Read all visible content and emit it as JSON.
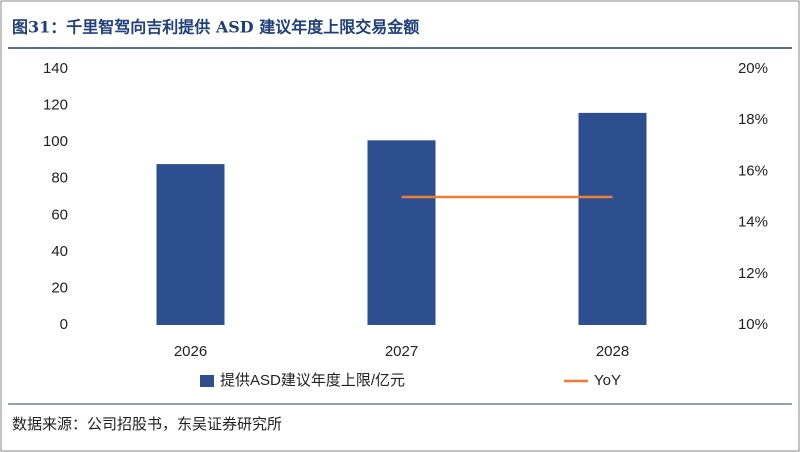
{
  "chart_data": {
    "type": "bar",
    "title": "图31：千里智驾向吉利提供 ASD 建议年度上限交易金额",
    "source": "数据来源：公司招股书，东吴证券研究所",
    "categories": [
      "2026",
      "2027",
      "2028"
    ],
    "series": [
      {
        "name": "提供ASD建议年度上限/亿元",
        "color": "#2e4f8f",
        "values": [
          88,
          101,
          116
        ]
      },
      {
        "name": "YoY",
        "color": "#ed7d31",
        "values": [
          null,
          15,
          15
        ],
        "axis": "y2",
        "type": "line"
      }
    ],
    "ylim": [
      0,
      140
    ],
    "yticks": [
      0,
      20,
      40,
      60,
      80,
      100,
      120,
      140
    ],
    "y2lim": [
      10,
      20
    ],
    "y2ticks": [
      {
        "value": 10,
        "label": "10%"
      },
      {
        "value": 12,
        "label": "12%"
      },
      {
        "value": 14,
        "label": "14%"
      },
      {
        "value": 16,
        "label": "16%"
      },
      {
        "value": 18,
        "label": "18%"
      },
      {
        "value": 20,
        "label": "20%"
      }
    ],
    "grid": false
  }
}
